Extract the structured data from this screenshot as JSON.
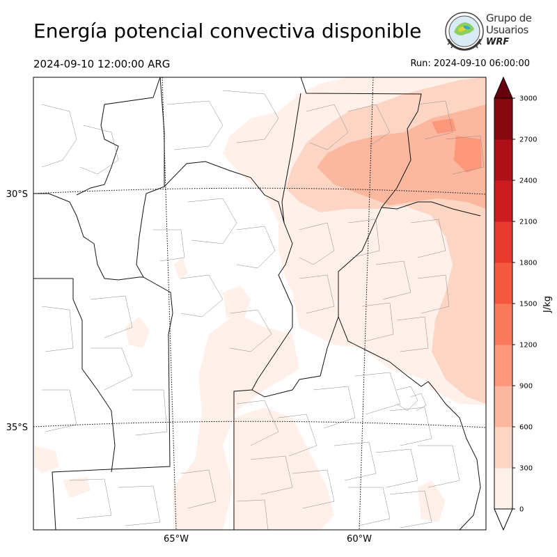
{
  "header": {
    "title": "Energía potencial convectiva disponible",
    "valid_time": "2024-09-10 12:00:00 ARG",
    "run_time": "Run: 2024-09-10 06:00:00"
  },
  "logo": {
    "line1": "Grupo de",
    "line2": "Usuarios",
    "line3": "WRF"
  },
  "map": {
    "lat_labels": [
      "30°S",
      "35°S"
    ],
    "lon_labels": [
      "65°W",
      "60°W"
    ],
    "field": "CAPE"
  },
  "colorbar": {
    "unit": "J/kg",
    "ticks": [
      "0",
      "300",
      "600",
      "900",
      "1200",
      "1500",
      "1800",
      "2100",
      "2400",
      "2700",
      "3000"
    ],
    "colors": [
      "#fff0ea",
      "#fdd5c4",
      "#fcb89e",
      "#fc9879",
      "#fa7b5c",
      "#f4583f",
      "#e83a2f",
      "#cd1c21",
      "#ad1117",
      "#860811"
    ],
    "extend_low_color": "#ffffff",
    "extend_high_color": "#67000d"
  }
}
